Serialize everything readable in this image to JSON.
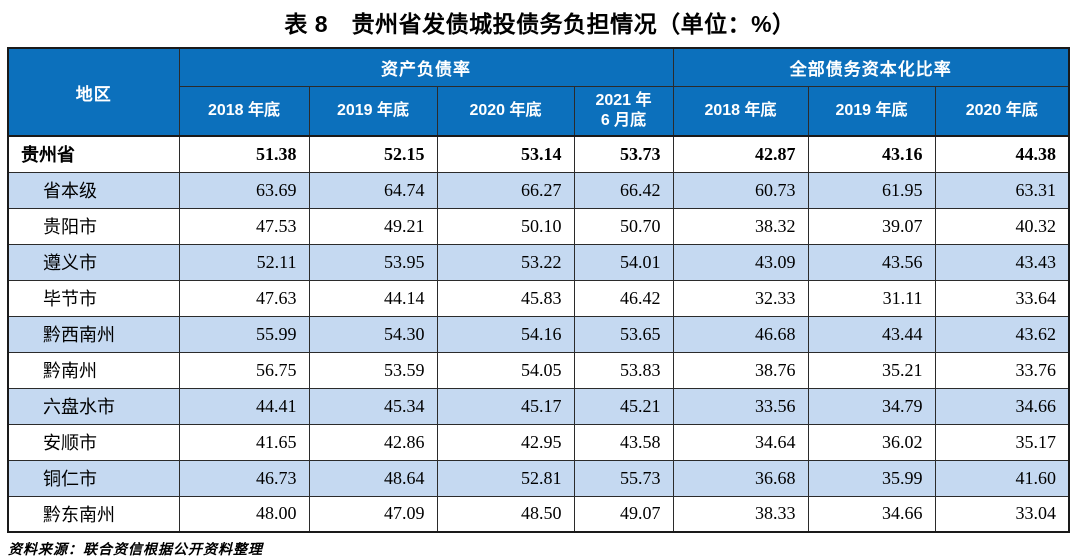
{
  "page": {
    "title": "表 8　贵州省发债城投债务负担情况（单位：%）",
    "source_note": "资料来源：联合资信根据公开资料整理"
  },
  "colors": {
    "header_bg": "#0C70BC",
    "alt_row_bg": "#C5D9F1",
    "header_text": "#FFFFFF",
    "border": "#1A1A1A"
  },
  "table": {
    "region_header": "地区",
    "groups": [
      {
        "label": "资产负债率",
        "columns": [
          "2018 年底",
          "2019 年底",
          "2020 年底",
          [
            "2021 年",
            "6 月底"
          ]
        ]
      },
      {
        "label": "全部债务资本化比率",
        "columns": [
          "2018 年底",
          "2019 年底",
          "2020 年底"
        ]
      }
    ],
    "rows": [
      {
        "region": "贵州省",
        "emphasis": true,
        "values": [
          "51.38",
          "52.15",
          "53.14",
          "53.73",
          "42.87",
          "43.16",
          "44.38"
        ]
      },
      {
        "region": "省本级",
        "emphasis": false,
        "values": [
          "63.69",
          "64.74",
          "66.27",
          "66.42",
          "60.73",
          "61.95",
          "63.31"
        ]
      },
      {
        "region": "贵阳市",
        "emphasis": false,
        "values": [
          "47.53",
          "49.21",
          "50.10",
          "50.70",
          "38.32",
          "39.07",
          "40.32"
        ]
      },
      {
        "region": "遵义市",
        "emphasis": false,
        "values": [
          "52.11",
          "53.95",
          "53.22",
          "54.01",
          "43.09",
          "43.56",
          "43.43"
        ]
      },
      {
        "region": "毕节市",
        "emphasis": false,
        "values": [
          "47.63",
          "44.14",
          "45.83",
          "46.42",
          "32.33",
          "31.11",
          "33.64"
        ]
      },
      {
        "region": "黔西南州",
        "emphasis": false,
        "values": [
          "55.99",
          "54.30",
          "54.16",
          "53.65",
          "46.68",
          "43.44",
          "43.62"
        ]
      },
      {
        "region": "黔南州",
        "emphasis": false,
        "values": [
          "56.75",
          "53.59",
          "54.05",
          "53.83",
          "38.76",
          "35.21",
          "33.76"
        ]
      },
      {
        "region": "六盘水市",
        "emphasis": false,
        "values": [
          "44.41",
          "45.34",
          "45.17",
          "45.21",
          "33.56",
          "34.79",
          "34.66"
        ]
      },
      {
        "region": "安顺市",
        "emphasis": false,
        "values": [
          "41.65",
          "42.86",
          "42.95",
          "43.58",
          "34.64",
          "36.02",
          "35.17"
        ]
      },
      {
        "region": "铜仁市",
        "emphasis": false,
        "values": [
          "46.73",
          "48.64",
          "52.81",
          "55.73",
          "36.68",
          "35.99",
          "41.60"
        ]
      },
      {
        "region": "黔东南州",
        "emphasis": false,
        "values": [
          "48.00",
          "47.09",
          "48.50",
          "49.07",
          "38.33",
          "34.66",
          "33.04"
        ]
      }
    ]
  }
}
